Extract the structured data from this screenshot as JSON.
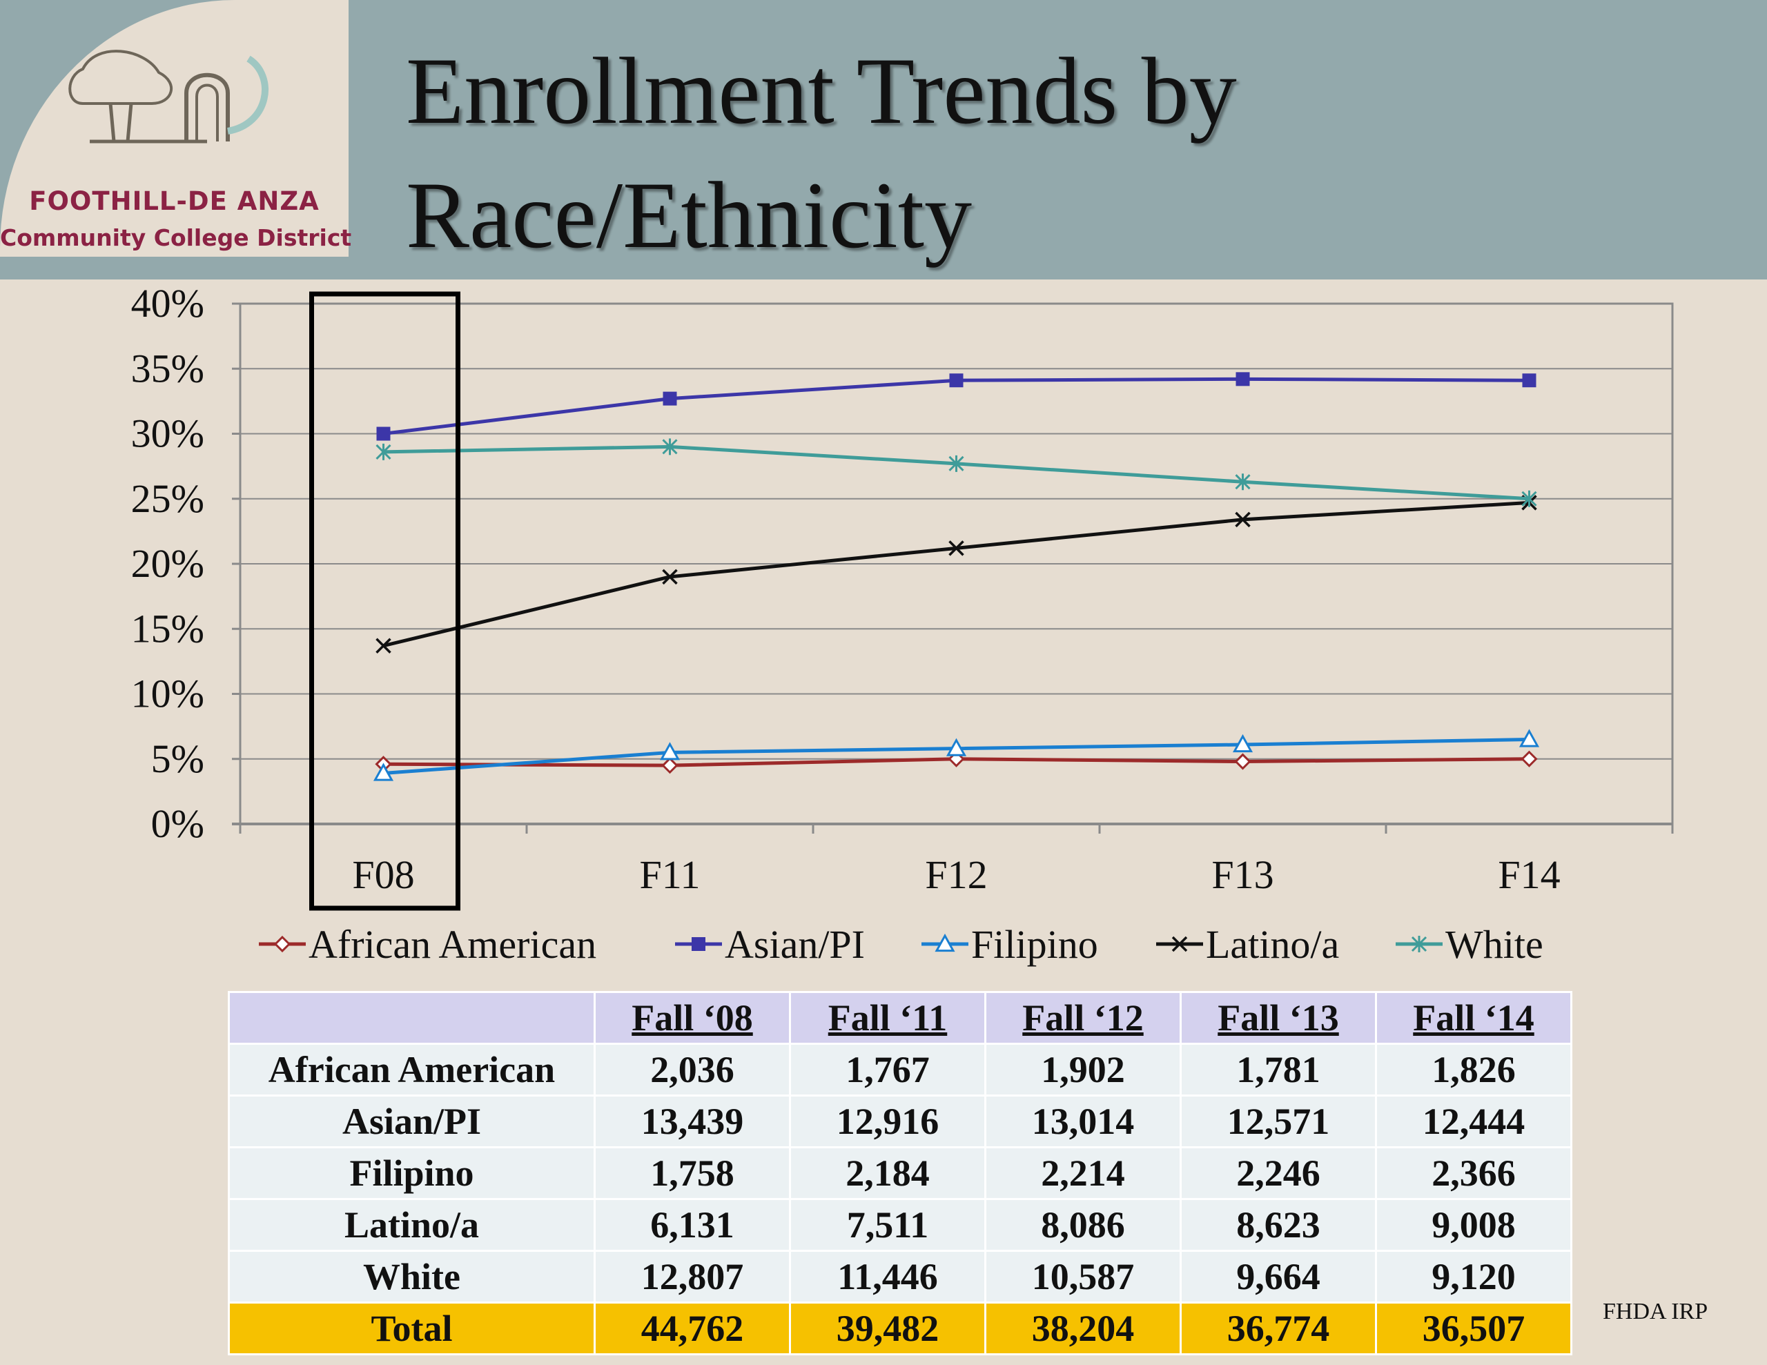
{
  "header": {
    "title_line1": "Enrollment Trends by",
    "title_line2": "Race/Ethnicity",
    "logo_line1": "FOOTHILL-DE ANZA",
    "logo_line2": "Community College District"
  },
  "colors": {
    "header_band": "#93a9ac",
    "background": "#e6ddd1",
    "logo_text": "#8b2244",
    "table_header": "#d4d1ee",
    "table_body": "#ebf1f3",
    "table_total": "#f6c100"
  },
  "chart_data": {
    "type": "line",
    "title": "",
    "xlabel": "",
    "ylabel": "",
    "categories": [
      "F08",
      "F11",
      "F12",
      "F13",
      "F14"
    ],
    "y_ticks": [
      "0%",
      "5%",
      "10%",
      "15%",
      "20%",
      "25%",
      "30%",
      "35%",
      "40%"
    ],
    "ylim": [
      0,
      40
    ],
    "grid": true,
    "legend_position": "bottom",
    "highlight_category": "F08",
    "series": [
      {
        "name": "African American",
        "values": [
          4.6,
          4.5,
          5.0,
          4.8,
          5.0
        ],
        "color": "#9c2a2a",
        "marker": "diamond-open"
      },
      {
        "name": "Asian/PI",
        "values": [
          30.0,
          32.7,
          34.1,
          34.2,
          34.1
        ],
        "color": "#3c36a8",
        "marker": "square"
      },
      {
        "name": "Filipino",
        "values": [
          3.9,
          5.5,
          5.8,
          6.1,
          6.5
        ],
        "color": "#1a7fd1",
        "marker": "triangle-open"
      },
      {
        "name": "Latino/a",
        "values": [
          13.7,
          19.0,
          21.2,
          23.4,
          24.7
        ],
        "color": "#111111",
        "marker": "x"
      },
      {
        "name": "White",
        "values": [
          28.6,
          29.0,
          27.7,
          26.3,
          25.0
        ],
        "color": "#3f9c99",
        "marker": "star"
      }
    ]
  },
  "table": {
    "headers": [
      "",
      "Fall ‘08",
      "Fall ‘11",
      "Fall ‘12",
      "Fall ‘13",
      "Fall ‘14"
    ],
    "rows": [
      [
        "African American",
        "2,036",
        "1,767",
        "1,902",
        "1,781",
        "1,826"
      ],
      [
        "Asian/PI",
        "13,439",
        "12,916",
        "13,014",
        "12,571",
        "12,444"
      ],
      [
        "Filipino",
        "1,758",
        "2,184",
        "2,214",
        "2,246",
        "2,366"
      ],
      [
        "Latino/a",
        "6,131",
        "7,511",
        "8,086",
        "8,623",
        "9,008"
      ],
      [
        "White",
        "12,807",
        "11,446",
        "10,587",
        "9,664",
        "9,120"
      ]
    ],
    "total": [
      "Total",
      "44,762",
      "39,482",
      "38,204",
      "36,774",
      "36,507"
    ]
  },
  "footer": {
    "credit": "FHDA IRP"
  }
}
